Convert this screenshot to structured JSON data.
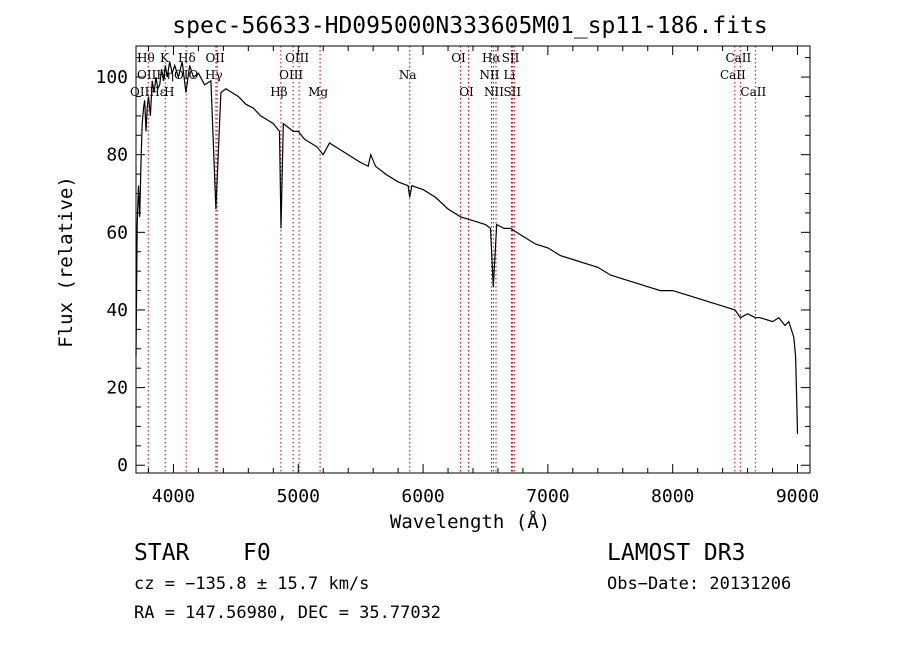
{
  "chart_data": {
    "type": "line",
    "title": "spec-56633-HD095000N333605M01_sp11-186.fits",
    "xlabel": "Wavelength (Å)",
    "ylabel": "Flux (relative)",
    "xlim": [
      3700,
      9100
    ],
    "ylim": [
      -2,
      108
    ],
    "xticks": [
      4000,
      5000,
      6000,
      7000,
      8000,
      9000
    ],
    "xtick_labels": [
      "4000",
      "5000",
      "6000",
      "7000",
      "8000",
      "9000"
    ],
    "yticks": [
      0,
      20,
      40,
      60,
      80,
      100
    ],
    "ytick_labels": [
      "0",
      "20",
      "40",
      "60",
      "80",
      "100"
    ],
    "series": [
      {
        "name": "flux",
        "x": [
          3700,
          3710,
          3720,
          3730,
          3740,
          3750,
          3760,
          3770,
          3780,
          3790,
          3800,
          3815,
          3830,
          3845,
          3860,
          3875,
          3890,
          3905,
          3920,
          3935,
          3950,
          3970,
          3990,
          4010,
          4040,
          4070,
          4100,
          4130,
          4160,
          4200,
          4250,
          4300,
          4340,
          4380,
          4420,
          4470,
          4520,
          4580,
          4640,
          4700,
          4750,
          4800,
          4850,
          4862,
          4880,
          4920,
          4960,
          5000,
          5050,
          5100,
          5150,
          5200,
          5250,
          5300,
          5350,
          5400,
          5450,
          5500,
          5560,
          5580,
          5620,
          5700,
          5800,
          5880,
          5893,
          5910,
          6000,
          6100,
          6200,
          6300,
          6400,
          6500,
          6540,
          6563,
          6590,
          6650,
          6700,
          6800,
          6900,
          7000,
          7100,
          7200,
          7300,
          7400,
          7500,
          7600,
          7700,
          7800,
          7900,
          8000,
          8100,
          8200,
          8300,
          8400,
          8500,
          8542,
          8600,
          8662,
          8700,
          8800,
          8850,
          8900,
          8930,
          8950,
          8970,
          8985,
          8995,
          9000
        ],
        "y": [
          28,
          62,
          72,
          64,
          78,
          88,
          92,
          94,
          86,
          92,
          95,
          90,
          99,
          96,
          100,
          97,
          98,
          102,
          99,
          103,
          100,
          104,
          101,
          103,
          100,
          104,
          96,
          103,
          100,
          101,
          98,
          99,
          66,
          96,
          97,
          96,
          95,
          93,
          92,
          90,
          89,
          88,
          86,
          61,
          88,
          87,
          86,
          86,
          84,
          83,
          82,
          80,
          83,
          82,
          81,
          80,
          79,
          78,
          77,
          80,
          77,
          75,
          73,
          72,
          69,
          72,
          71,
          69,
          66,
          64,
          63,
          62,
          61,
          46,
          62,
          61,
          61,
          59,
          57,
          56,
          54,
          53,
          52,
          51,
          49,
          48,
          47,
          46,
          45,
          45,
          44,
          43,
          42,
          41,
          40,
          38,
          39,
          38,
          38,
          37,
          38,
          36,
          37,
          35,
          33,
          28,
          15,
          8
        ],
        "color": "#000000"
      }
    ],
    "lines": [
      {
        "label": "Hθ",
        "x": 3798
      },
      {
        "label": "K",
        "x": 3934
      },
      {
        "label": "Hδ",
        "x": 4102
      },
      {
        "label": "OII",
        "x": 4350
      },
      {
        "label": "Hγ",
        "x": 4340
      },
      {
        "label": "Hβ",
        "x": 4861
      },
      {
        "label": "OIII",
        "x": 5007
      },
      {
        "label": "OIII",
        "x": 4959
      },
      {
        "label": "Mg",
        "x": 5175
      },
      {
        "label": "Na",
        "x": 5893
      },
      {
        "label": "OI",
        "x": 6300
      },
      {
        "label": "OI",
        "x": 6364
      },
      {
        "label": "Hα",
        "x": 6563
      },
      {
        "label": "NII",
        "x": 6548
      },
      {
        "label": "NII",
        "x": 6584
      },
      {
        "label": "SII",
        "x": 6717
      },
      {
        "label": "Li",
        "x": 6708
      },
      {
        "label": "SII",
        "x": 6731
      },
      {
        "label": "CaII",
        "x": 8542
      },
      {
        "label": "CaII",
        "x": 8498
      },
      {
        "label": "CaII",
        "x": 8662
      }
    ],
    "crowded_labels": {
      "row1": "Hθ",
      "row1b": "K",
      "row1c": "Hδ",
      "row2": "OIIHηOIO",
      "row3": "OIIHε",
      "row3b": "H"
    }
  },
  "info": {
    "class": "STAR",
    "subclass": "F0",
    "survey": "LAMOST DR3",
    "cz": "cz = −135.8 ± 15.7 km/s",
    "obs_date": "Obs−Date: 20131206",
    "coords": "RA = 147.56980, DEC =  35.77032"
  }
}
